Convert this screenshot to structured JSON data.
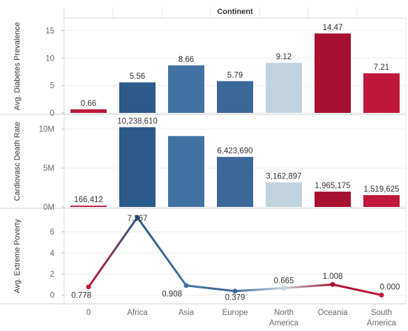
{
  "chart_data": {
    "type": "bar",
    "title": "Continent",
    "categories": [
      "0",
      "Africa",
      "Asia",
      "Europe",
      "North America",
      "Oceania",
      "South America"
    ],
    "category_lines": [
      [
        "0"
      ],
      [
        "Africa"
      ],
      [
        "Asia"
      ],
      [
        "Europe"
      ],
      [
        "North",
        "America"
      ],
      [
        "Oceania"
      ],
      [
        "South",
        "America"
      ]
    ],
    "category_colors": [
      "#c0183a",
      "#2c5a8a",
      "#4272a3",
      "#3b6899",
      "#c2d3e0",
      "#a8102f",
      "#c0183a"
    ],
    "panels": [
      {
        "type": "bar",
        "ylabel": "Avg. Diabetes Prevalence",
        "ylim": [
          0,
          16
        ],
        "yticks": [
          0,
          5,
          10,
          15
        ],
        "ytick_labels": [
          "0",
          "5",
          "10",
          "15"
        ],
        "values": [
          0.66,
          5.56,
          8.66,
          5.79,
          9.12,
          14.47,
          7.21
        ],
        "labels": [
          "0.66",
          "5.56",
          "8.66",
          "5.79",
          "9.12",
          "14.47",
          "7.21"
        ]
      },
      {
        "type": "bar",
        "ylabel": "Cardiovasc Death Rate",
        "ylim": [
          0,
          11000000
        ],
        "yticks": [
          0,
          5000000,
          10000000
        ],
        "ytick_labels": [
          "0M",
          "5M",
          "10M"
        ],
        "values": [
          166412,
          10238610,
          9100000,
          6423690,
          3162897,
          1965175,
          1519625
        ],
        "labels": [
          "166,412",
          "10,238,610",
          "",
          "6,423,690",
          "3,162,897",
          "1,965,175",
          "1,519,625"
        ]
      },
      {
        "type": "line",
        "ylabel": "Avg. Extreme Poverty",
        "ylim": [
          -0.3,
          7.7
        ],
        "yticks": [
          0,
          2,
          4,
          6
        ],
        "ytick_labels": [
          "0",
          "2",
          "4",
          "6"
        ],
        "values": [
          0.778,
          7.367,
          0.908,
          0.379,
          0.665,
          1.008,
          0.0
        ],
        "labels": [
          "0.778",
          "7.367",
          "0.908",
          "0.379",
          "0.665",
          "1.008",
          "0.000"
        ]
      }
    ],
    "grid": true,
    "legend": "none"
  }
}
